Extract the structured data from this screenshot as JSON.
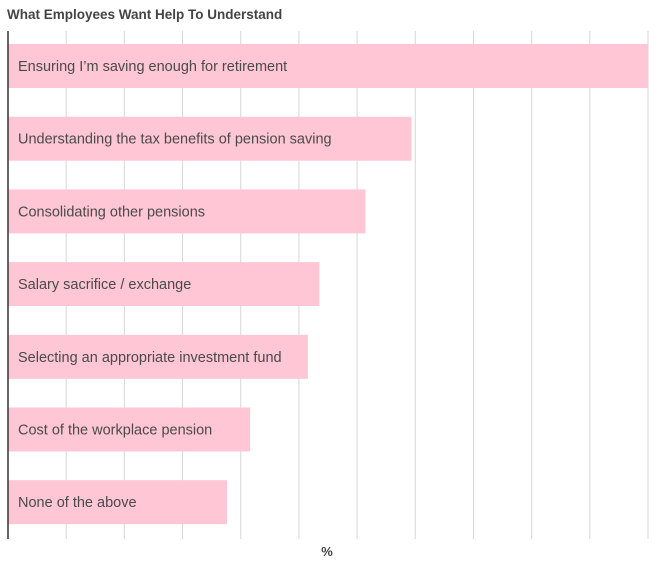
{
  "chart_data": {
    "type": "bar",
    "orientation": "horizontal",
    "title": "What Employees Want Help To Understand",
    "xlabel": "%",
    "ylabel": "",
    "categories": [
      "Ensuring I’m saving enough for retirement",
      "Understanding the tax benefits of pension saving",
      "Consolidating other pensions",
      "Salary sacrifice / exchange",
      "Selecting an appropriate investment fund",
      "Cost of the workplace pension",
      "None of the above"
    ],
    "values": [
      55.5,
      35,
      31,
      27,
      26,
      21,
      19
    ],
    "xlim": [
      0,
      55.5
    ],
    "grid": true,
    "legend": "none",
    "colors": {
      "bar": "#ffc6d5",
      "grid": "#d6d6d6",
      "axis": "#333333",
      "label": "#4a4a4a"
    }
  }
}
